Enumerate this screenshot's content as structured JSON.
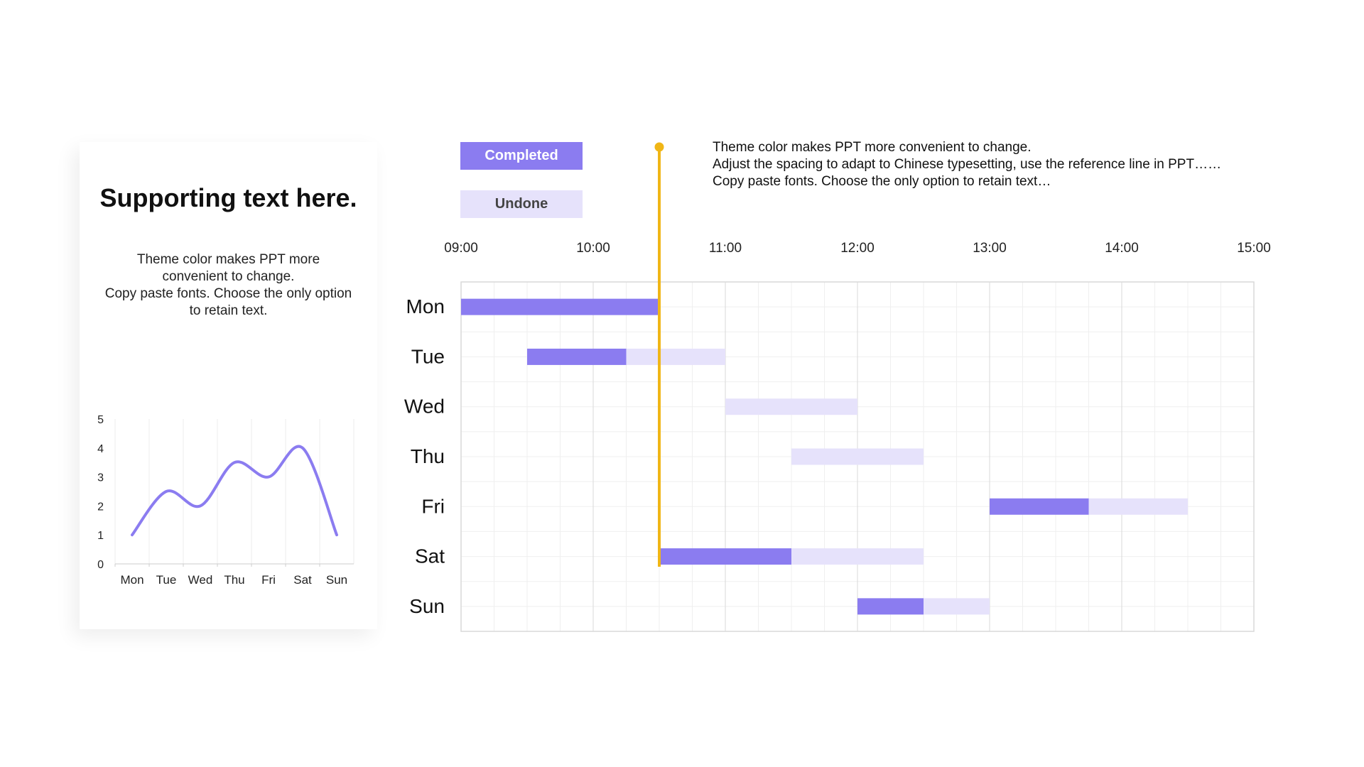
{
  "card": {
    "title": "Supporting text here.",
    "body_lines": [
      "Theme color makes PPT more",
      "convenient to change.",
      "Copy paste fonts. Choose the only option",
      "to retain text."
    ]
  },
  "legend": {
    "completed_label": "Completed",
    "undone_label": "Undone"
  },
  "notes": [
    "Theme color makes PPT more convenient to change.",
    "Adjust the spacing to adapt to Chinese typesetting, use the reference line in PPT……",
    "Copy paste fonts. Choose the only option to retain text…"
  ],
  "colors": {
    "completed": "#8b7cf0",
    "undone": "#e6e2fb",
    "reference_line": "#f0b616",
    "grid_major": "#d9d9d9",
    "grid_minor": "#efefef",
    "line_series": "#8b7cf0"
  },
  "chart_data": [
    {
      "type": "line",
      "categories": [
        "Mon",
        "Tue",
        "Wed",
        "Thu",
        "Fri",
        "Sat",
        "Sun"
      ],
      "values": [
        1,
        2.5,
        2,
        3.5,
        3,
        4,
        1
      ],
      "yticks": [
        0,
        1,
        2,
        3,
        4,
        5
      ],
      "ylim": [
        0,
        5
      ],
      "smooth": true,
      "grid": "vertical",
      "title": "",
      "xlabel": "",
      "ylabel": ""
    },
    {
      "type": "gantt",
      "time_ticks": [
        "09:00",
        "10:00",
        "11:00",
        "12:00",
        "13:00",
        "14:00",
        "15:00"
      ],
      "xlim": [
        "09:00",
        "15:00"
      ],
      "reference_time": "10:30",
      "rows": [
        {
          "day": "Mon",
          "start": "09:00",
          "completed_until": "10:30",
          "end": "10:30"
        },
        {
          "day": "Tue",
          "start": "09:30",
          "completed_until": "10:15",
          "end": "11:00"
        },
        {
          "day": "Wed",
          "start": "11:00",
          "completed_until": "11:00",
          "end": "12:00"
        },
        {
          "day": "Thu",
          "start": "11:30",
          "completed_until": "11:30",
          "end": "12:30"
        },
        {
          "day": "Fri",
          "start": "13:00",
          "completed_until": "13:45",
          "end": "14:30"
        },
        {
          "day": "Sat",
          "start": "10:30",
          "completed_until": "11:30",
          "end": "12:30"
        },
        {
          "day": "Sun",
          "start": "12:00",
          "completed_until": "12:30",
          "end": "13:00"
        }
      ]
    }
  ]
}
